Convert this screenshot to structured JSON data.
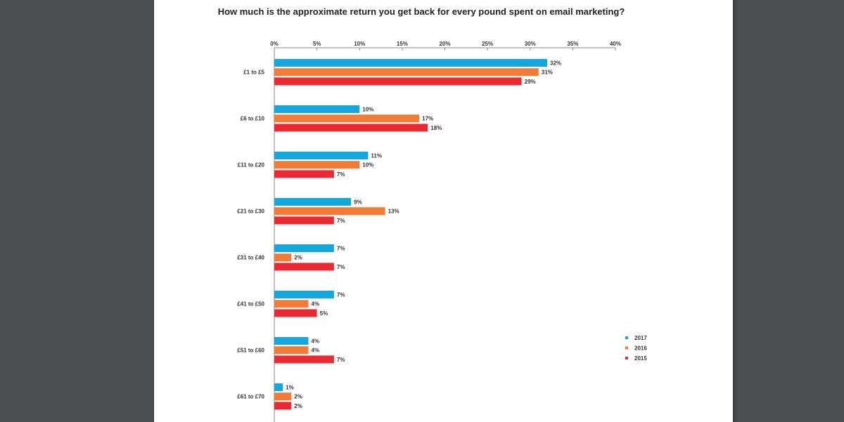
{
  "chart_data": {
    "type": "bar",
    "orientation": "horizontal",
    "title": "How much is the approximate return you get back for every pound spent on email marketing?",
    "xlim": [
      0,
      40
    ],
    "x_ticks": [
      "0%",
      "5%",
      "10%",
      "15%",
      "20%",
      "25%",
      "30%",
      "35%",
      "40%"
    ],
    "categories": [
      "£1 to £5",
      "£6 to £10",
      "£11 to £20",
      "£21 to £30",
      "£31 to £40",
      "£41 to £50",
      "£51 to £60",
      "£61 to £70"
    ],
    "series": [
      {
        "name": "2017",
        "color": "#13a7e0",
        "values": [
          32,
          10,
          11,
          9,
          7,
          7,
          4,
          1
        ]
      },
      {
        "name": "2016",
        "color": "#f47b35",
        "values": [
          31,
          17,
          10,
          13,
          2,
          4,
          4,
          2
        ]
      },
      {
        "name": "2015",
        "color": "#ec2833",
        "values": [
          29,
          18,
          7,
          7,
          7,
          5,
          7,
          2
        ]
      }
    ],
    "value_suffix": "%",
    "grid": false,
    "legend_position": "bottom-right"
  }
}
